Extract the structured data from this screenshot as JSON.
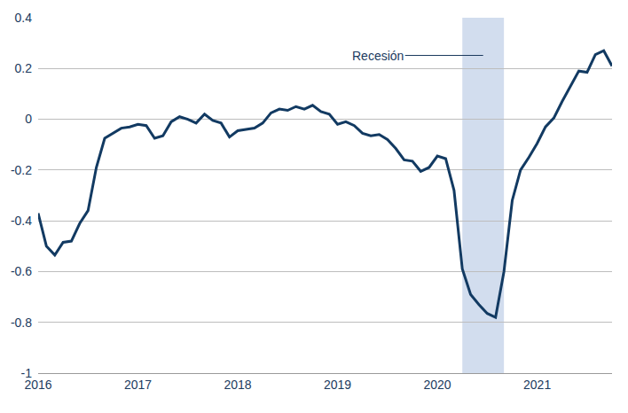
{
  "chart_data": {
    "type": "line",
    "x": [
      2016,
      2016.083,
      2016.167,
      2016.25,
      2016.333,
      2016.417,
      2016.5,
      2016.583,
      2016.667,
      2016.75,
      2016.833,
      2016.917,
      2017,
      2017.083,
      2017.167,
      2017.25,
      2017.333,
      2017.417,
      2017.5,
      2017.583,
      2017.667,
      2017.75,
      2017.833,
      2017.917,
      2018,
      2018.083,
      2018.167,
      2018.25,
      2018.333,
      2018.417,
      2018.5,
      2018.583,
      2018.667,
      2018.75,
      2018.833,
      2018.917,
      2019,
      2019.083,
      2019.167,
      2019.25,
      2019.333,
      2019.417,
      2019.5,
      2019.583,
      2019.667,
      2019.75,
      2019.833,
      2019.917,
      2020,
      2020.083,
      2020.167,
      2020.25,
      2020.333,
      2020.417,
      2020.5,
      2020.583,
      2020.667,
      2020.75,
      2020.833,
      2020.917,
      2021,
      2021.083,
      2021.167,
      2021.25,
      2021.333,
      2021.417,
      2021.5,
      2021.583,
      2021.667,
      2021.75
    ],
    "series": [
      {
        "color": "#123a62",
        "values": [
          -0.37,
          -0.5,
          -0.535,
          -0.485,
          -0.48,
          -0.41,
          -0.36,
          -0.19,
          -0.075,
          -0.055,
          -0.035,
          -0.03,
          -0.02,
          -0.025,
          -0.075,
          -0.065,
          -0.01,
          0.01,
          0,
          -0.015,
          0.02,
          -0.005,
          -0.015,
          -0.07,
          -0.045,
          -0.04,
          -0.035,
          -0.015,
          0.025,
          0.04,
          0.035,
          0.05,
          0.04,
          0.055,
          0.03,
          0.02,
          -0.02,
          -0.01,
          -0.025,
          -0.055,
          -0.065,
          -0.06,
          -0.08,
          -0.115,
          -0.16,
          -0.165,
          -0.205,
          -0.19,
          -0.145,
          -0.155,
          -0.28,
          -0.59,
          -0.69,
          -0.73,
          -0.765,
          -0.78,
          -0.6,
          -0.32,
          -0.2,
          -0.15,
          -0.095,
          -0.03,
          0.005,
          0.07,
          0.13,
          0.19,
          0.185,
          0.255,
          0.27,
          0.21
        ]
      }
    ],
    "shaded_periods": [
      {
        "label": "Recesión",
        "start": 2020.25,
        "end": 2020.667,
        "color": "#cad7eb"
      }
    ],
    "xlim": [
      2016,
      2021.75
    ],
    "xticks": [
      2016,
      2017,
      2018,
      2019,
      2020,
      2021
    ],
    "ylim": [
      -1,
      0.4
    ],
    "yticks": [
      -1,
      -0.8,
      -0.6,
      -0.4,
      -0.2,
      0,
      0.2,
      0.4
    ],
    "grid": true
  }
}
